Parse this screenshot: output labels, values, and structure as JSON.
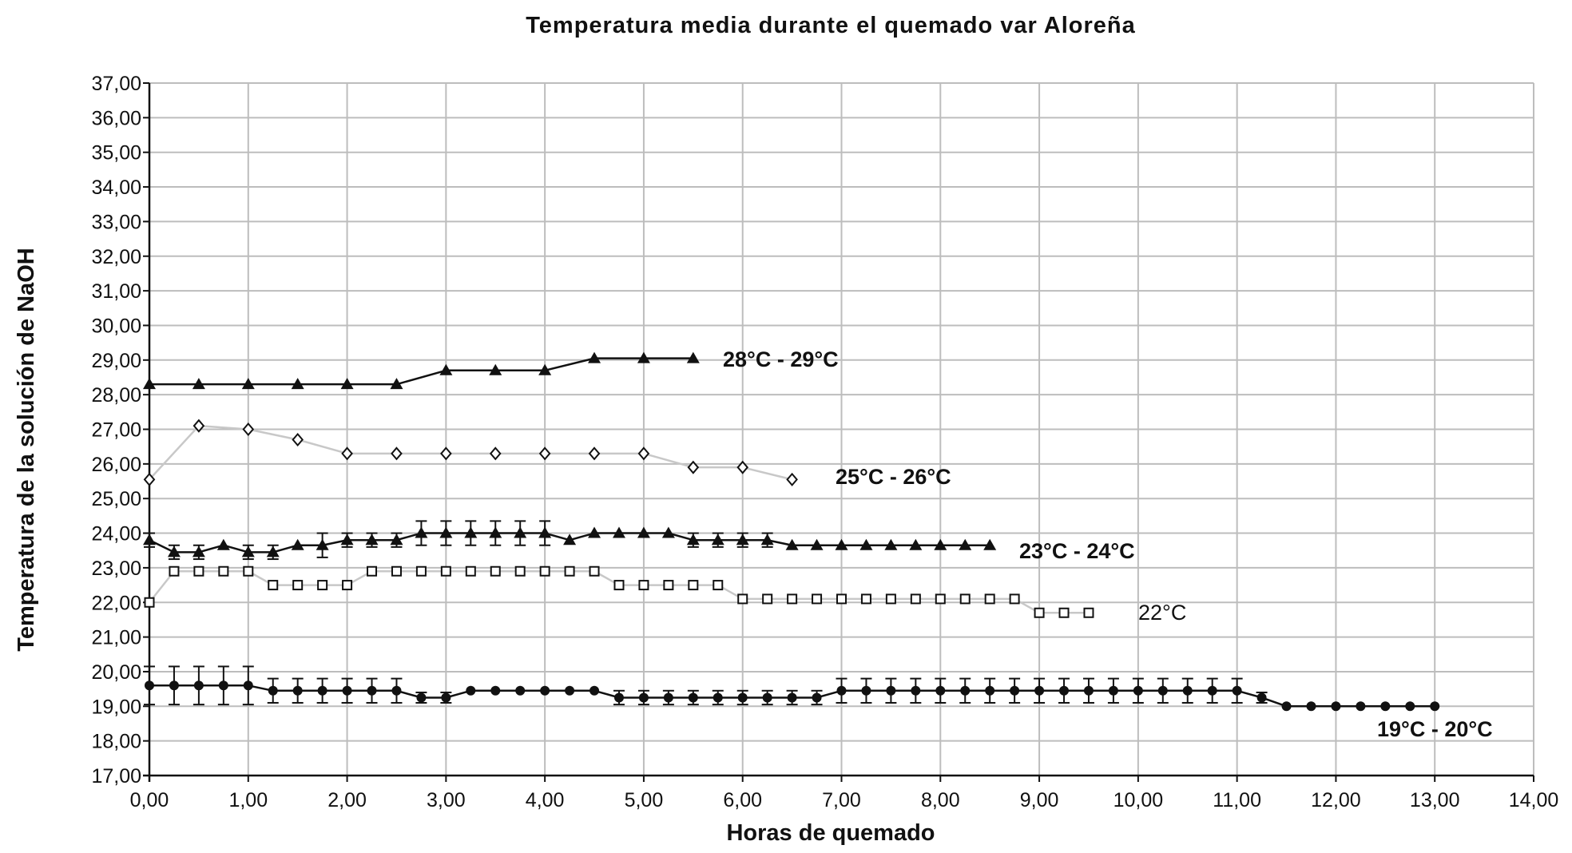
{
  "chart_data": {
    "type": "line",
    "title": "Temperatura media durante el quemado var Aloreña",
    "xlabel": "Horas de quemado",
    "ylabel": "Temperatura de la solución de NaOH",
    "xlim": [
      0,
      14
    ],
    "ylim": [
      17,
      37
    ],
    "xticks": [
      "0,00",
      "1,00",
      "2,00",
      "3,00",
      "4,00",
      "5,00",
      "6,00",
      "7,00",
      "8,00",
      "9,00",
      "10,00",
      "11,00",
      "12,00",
      "13,00",
      "14,00"
    ],
    "yticks": [
      "17,00",
      "18,00",
      "19,00",
      "20,00",
      "21,00",
      "22,00",
      "23,00",
      "24,00",
      "25,00",
      "26,00",
      "27,00",
      "28,00",
      "29,00",
      "30,00",
      "31,00",
      "32,00",
      "33,00",
      "34,00",
      "35,00",
      "36,00",
      "37,00"
    ],
    "grid": true,
    "series": [
      {
        "name": "28°C - 29°C",
        "marker": "triangle",
        "line_color": "#111111",
        "x": [
          0,
          0.5,
          1,
          1.5,
          2,
          2.5,
          3,
          3.5,
          4,
          4.5,
          5,
          5.5
        ],
        "y": [
          28.3,
          28.3,
          28.3,
          28.3,
          28.3,
          28.3,
          28.7,
          28.7,
          28.7,
          29.05,
          29.05,
          29.05
        ]
      },
      {
        "name": "25°C - 26°C",
        "marker": "diamond-open",
        "line_color": "#c8c8c8",
        "x": [
          0,
          0.5,
          1,
          1.5,
          2,
          2.5,
          3,
          3.5,
          4,
          4.5,
          5,
          5.5,
          6,
          6.5
        ],
        "y": [
          25.55,
          27.1,
          27.0,
          26.7,
          26.3,
          26.3,
          26.3,
          26.3,
          26.3,
          26.3,
          26.3,
          25.9,
          25.9,
          25.55
        ]
      },
      {
        "name": "23°C - 24°C",
        "marker": "triangle",
        "line_color": "#111111",
        "x": [
          0,
          0.25,
          0.5,
          0.75,
          1,
          1.25,
          1.5,
          1.75,
          2,
          2.25,
          2.5,
          2.75,
          3,
          3.25,
          3.5,
          3.75,
          4,
          4.25,
          4.5,
          4.75,
          5,
          5.25,
          5.5,
          5.75,
          6,
          6.25,
          6.5,
          6.75,
          7,
          7.25,
          7.5,
          7.75,
          8,
          8.25,
          8.5
        ],
        "y": [
          23.8,
          23.45,
          23.45,
          23.65,
          23.45,
          23.45,
          23.65,
          23.65,
          23.8,
          23.8,
          23.8,
          24.0,
          24.0,
          24.0,
          24.0,
          24.0,
          24.0,
          23.8,
          24.0,
          24.0,
          24.0,
          24.0,
          23.8,
          23.8,
          23.8,
          23.8,
          23.65,
          23.65,
          23.65,
          23.65,
          23.65,
          23.65,
          23.65,
          23.65,
          23.65
        ],
        "error": [
          0.2,
          0.2,
          0.2,
          0.0,
          0.2,
          0.2,
          0.0,
          0.35,
          0.2,
          0.2,
          0.2,
          0.35,
          0.35,
          0.35,
          0.35,
          0.35,
          0.35,
          0.0,
          0.0,
          0.0,
          0.0,
          0.0,
          0.2,
          0.2,
          0.2,
          0.2,
          0.0,
          0.0,
          0.0,
          0.0,
          0.0,
          0.0,
          0.0,
          0.0,
          0.0
        ]
      },
      {
        "name": "22°C",
        "marker": "square-open",
        "line_color": "#c8c8c8",
        "x": [
          0,
          0.25,
          0.5,
          0.75,
          1,
          1.25,
          1.5,
          1.75,
          2,
          2.25,
          2.5,
          2.75,
          3,
          3.25,
          3.5,
          3.75,
          4,
          4.25,
          4.5,
          4.75,
          5,
          5.25,
          5.5,
          5.75,
          6,
          6.25,
          6.5,
          6.75,
          7,
          7.25,
          7.5,
          7.75,
          8,
          8.25,
          8.5,
          8.75,
          9,
          9.25,
          9.5
        ],
        "y": [
          22.0,
          22.9,
          22.9,
          22.9,
          22.9,
          22.5,
          22.5,
          22.5,
          22.5,
          22.9,
          22.9,
          22.9,
          22.9,
          22.9,
          22.9,
          22.9,
          22.9,
          22.9,
          22.9,
          22.5,
          22.5,
          22.5,
          22.5,
          22.5,
          22.1,
          22.1,
          22.1,
          22.1,
          22.1,
          22.1,
          22.1,
          22.1,
          22.1,
          22.1,
          22.1,
          22.1,
          21.7,
          21.7,
          21.7
        ]
      },
      {
        "name": "19°C - 20°C",
        "marker": "circle",
        "line_color": "#111111",
        "x": [
          0,
          0.25,
          0.5,
          0.75,
          1,
          1.25,
          1.5,
          1.75,
          2,
          2.25,
          2.5,
          2.75,
          3,
          3.25,
          3.5,
          3.75,
          4,
          4.25,
          4.5,
          4.75,
          5,
          5.25,
          5.5,
          5.75,
          6,
          6.25,
          6.5,
          6.75,
          7,
          7.25,
          7.5,
          7.75,
          8,
          8.25,
          8.5,
          8.75,
          9,
          9.25,
          9.5,
          9.75,
          10,
          10.25,
          10.5,
          10.75,
          11,
          11.25,
          11.5,
          11.75,
          12,
          12.25,
          12.5,
          12.75,
          13
        ],
        "y": [
          19.6,
          19.6,
          19.6,
          19.6,
          19.6,
          19.45,
          19.45,
          19.45,
          19.45,
          19.45,
          19.45,
          19.25,
          19.25,
          19.45,
          19.45,
          19.45,
          19.45,
          19.45,
          19.45,
          19.25,
          19.25,
          19.25,
          19.25,
          19.25,
          19.25,
          19.25,
          19.25,
          19.25,
          19.45,
          19.45,
          19.45,
          19.45,
          19.45,
          19.45,
          19.45,
          19.45,
          19.45,
          19.45,
          19.45,
          19.45,
          19.45,
          19.45,
          19.45,
          19.45,
          19.45,
          19.25,
          19.0,
          19.0,
          19.0,
          19.0,
          19.0,
          19.0,
          19.0
        ],
        "error": [
          0.55,
          0.55,
          0.55,
          0.55,
          0.55,
          0.35,
          0.35,
          0.35,
          0.35,
          0.35,
          0.35,
          0.15,
          0.15,
          0.0,
          0.0,
          0.0,
          0.0,
          0.0,
          0.0,
          0.2,
          0.2,
          0.2,
          0.2,
          0.2,
          0.2,
          0.2,
          0.2,
          0.2,
          0.35,
          0.35,
          0.35,
          0.35,
          0.35,
          0.35,
          0.35,
          0.35,
          0.35,
          0.35,
          0.35,
          0.35,
          0.35,
          0.35,
          0.35,
          0.35,
          0.35,
          0.15,
          0.0,
          0.0,
          0.0,
          0.0,
          0.0,
          0.0,
          0.0
        ]
      }
    ]
  }
}
